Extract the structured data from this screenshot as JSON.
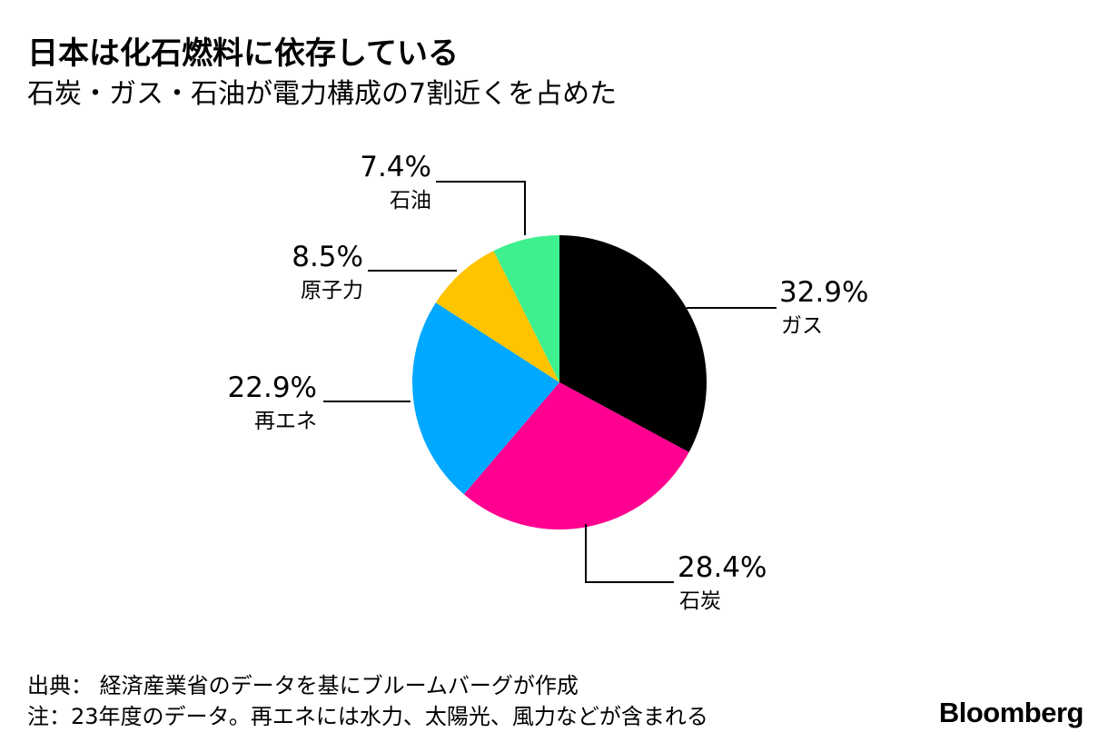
{
  "title": "日本は化石燃料に依存している",
  "subtitle": "石炭・ガス・石油が電力構成の7割近くを占めた",
  "footer": {
    "source": "出典： 経済産業省のデータを基にブルームバーグが作成",
    "note": "注：23年度のデータ。再エネには水力、太陽光、風力などが含まれる"
  },
  "logo": "Bloomberg",
  "chart_data": {
    "type": "pie",
    "title": "日本は化石燃料に依存している",
    "subtitle": "石炭・ガス・石油が電力構成の7割近くを占めた",
    "start": "12 o'clock",
    "direction": "clockwise",
    "slices": [
      {
        "label": "ガス",
        "value": 32.9,
        "value_label": "32.9%",
        "color": "#000000"
      },
      {
        "label": "石炭",
        "value": 28.4,
        "value_label": "28.4%",
        "color": "#FF0090"
      },
      {
        "label": "再エネ",
        "value": 22.9,
        "value_label": "22.9%",
        "color": "#00A8FF"
      },
      {
        "label": "原子力",
        "value": 8.5,
        "value_label": "8.5%",
        "color": "#FFC400"
      },
      {
        "label": "石油",
        "value": 7.4,
        "value_label": "7.4%",
        "color": "#3FF08F"
      }
    ]
  }
}
